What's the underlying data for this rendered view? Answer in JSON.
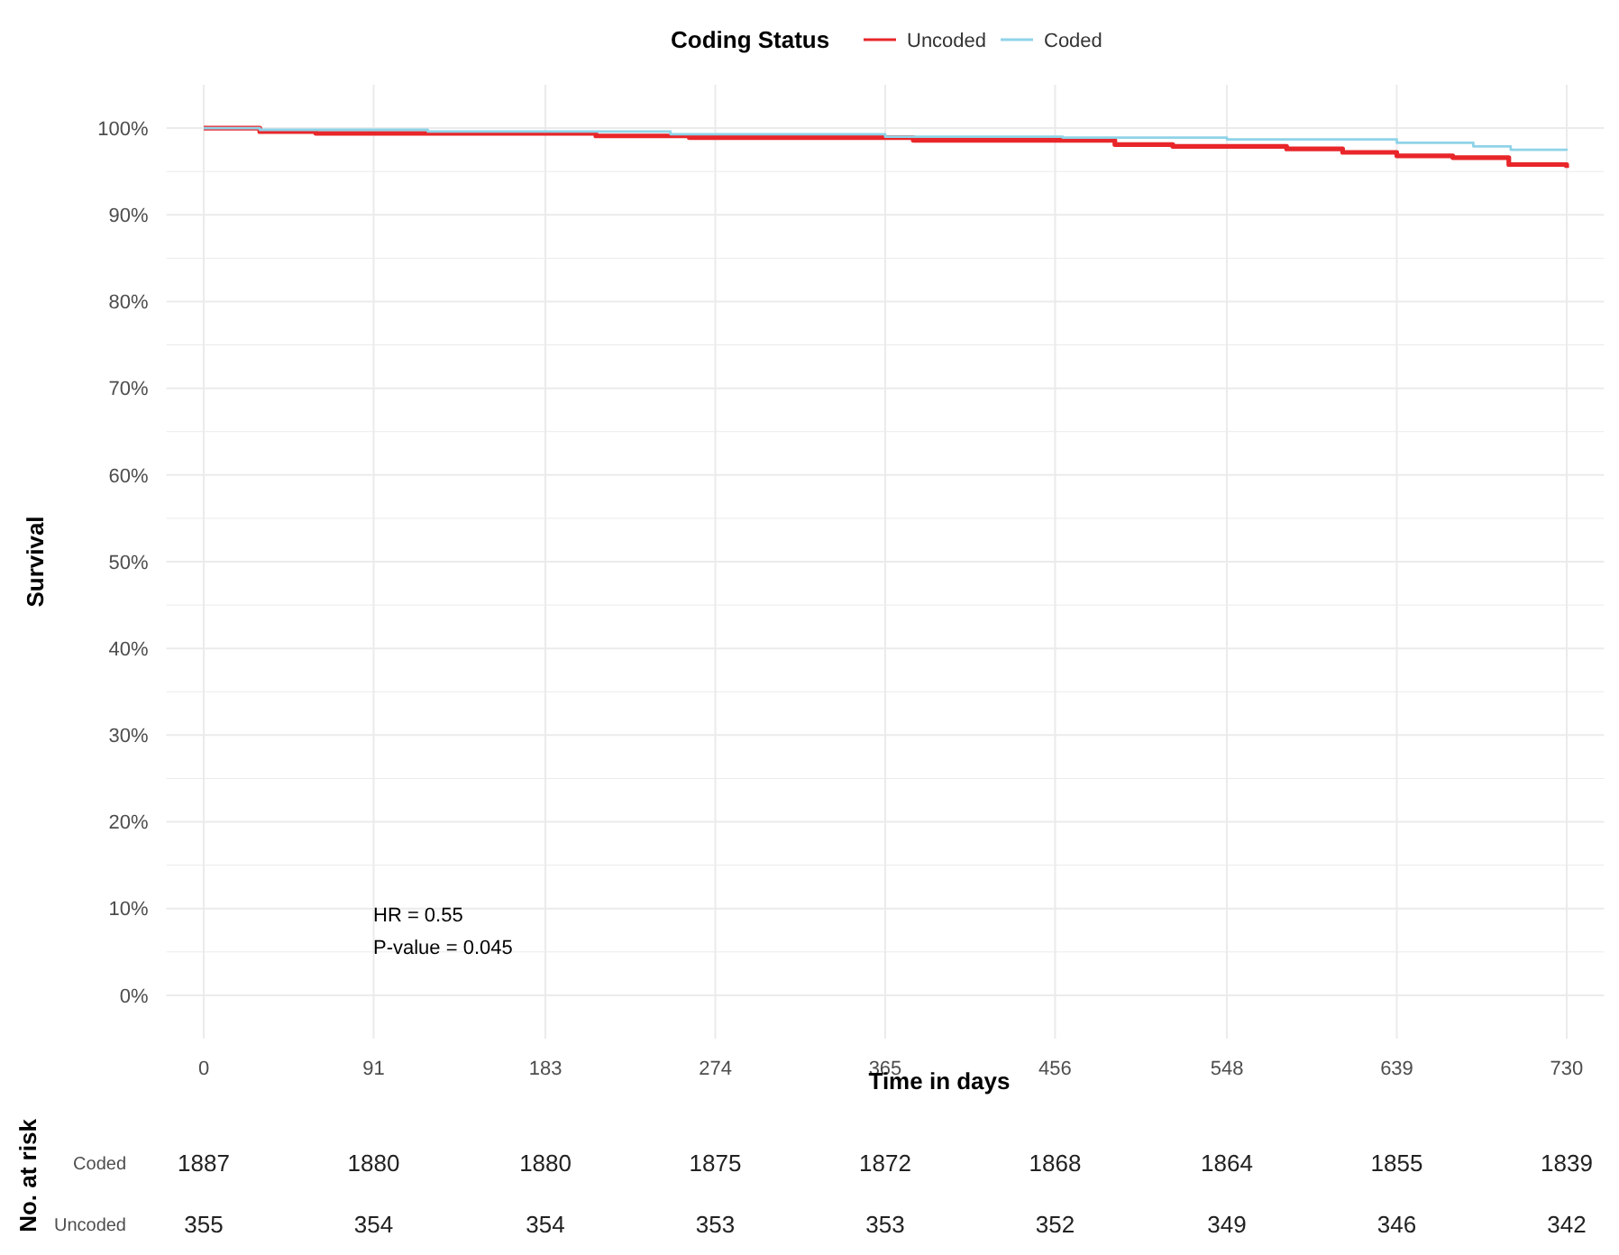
{
  "chart_data": {
    "type": "step",
    "xlabel": "Time in days",
    "ylabel": "Survival",
    "legend_title": "Coding Status",
    "legend": "top",
    "grid": true,
    "xlim": [
      -20,
      750
    ],
    "xticks": [
      0,
      91,
      183,
      274,
      365,
      456,
      548,
      639,
      730
    ],
    "ylim": [
      -5,
      105
    ],
    "yticks": [
      {
        "value": 0,
        "label": "0%"
      },
      {
        "value": 5,
        "label": null
      },
      {
        "value": 10,
        "label": "10%"
      },
      {
        "value": 15,
        "label": null
      },
      {
        "value": 20,
        "label": "20%"
      },
      {
        "value": 25,
        "label": null
      },
      {
        "value": 30,
        "label": "30%"
      },
      {
        "value": 35,
        "label": null
      },
      {
        "value": 40,
        "label": "40%"
      },
      {
        "value": 45,
        "label": null
      },
      {
        "value": 50,
        "label": "50%"
      },
      {
        "value": 55,
        "label": null
      },
      {
        "value": 60,
        "label": "60%"
      },
      {
        "value": 65,
        "label": null
      },
      {
        "value": 70,
        "label": "70%"
      },
      {
        "value": 75,
        "label": null
      },
      {
        "value": 80,
        "label": "80%"
      },
      {
        "value": 85,
        "label": null
      },
      {
        "value": 90,
        "label": "90%"
      },
      {
        "value": 95,
        "label": null
      },
      {
        "value": 100,
        "label": "100%"
      }
    ],
    "series": [
      {
        "name": "Uncoded",
        "color": "#e8262a",
        "x": [
          0,
          30,
          60,
          210,
          260,
          380,
          488,
          519,
          580,
          610,
          639,
          669,
          699,
          730
        ],
        "values": [
          100,
          99.6,
          99.4,
          99.1,
          98.9,
          98.6,
          98.1,
          97.9,
          97.6,
          97.2,
          96.8,
          96.6,
          95.8,
          95.4
        ]
      },
      {
        "name": "Coded",
        "color": "#8fd3e8",
        "x": [
          0,
          30,
          120,
          250,
          365,
          460,
          548,
          639,
          680,
          700,
          730
        ],
        "values": [
          100,
          99.8,
          99.6,
          99.3,
          99.0,
          98.9,
          98.7,
          98.3,
          97.9,
          97.5,
          97.4
        ]
      }
    ],
    "annotations": [
      "HR = 0.55",
      "P-value = 0.045",
      "No. at risk",
      "Coded",
      "Uncoded",
      "1887",
      "1880",
      "1880",
      "1875",
      "1872",
      "1868",
      "1864",
      "1855",
      "1839",
      "355",
      "354",
      "354",
      "353",
      "353",
      "352",
      "349",
      "346",
      "342"
    ]
  }
}
